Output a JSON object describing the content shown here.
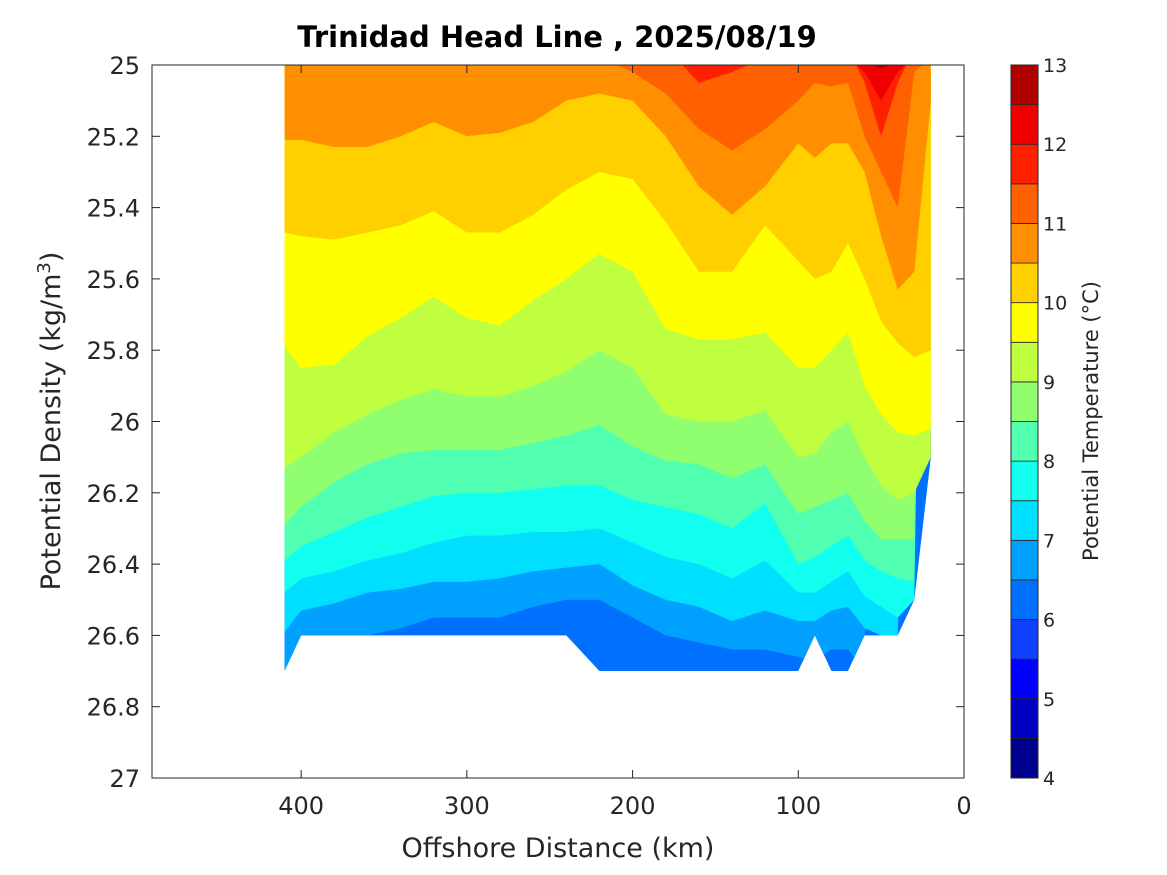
{
  "chart_data": {
    "type": "contourf",
    "title": "Trinidad Head Line , 2025/08/19",
    "xlabel": "Offshore Distance (km)",
    "ylabel": "Potential Density (kg/m",
    "ylabel_superscript": "3",
    "ylabel_suffix": ")",
    "colorbar_label": "Potential Temperature (°C)",
    "xlim": [
      490,
      0
    ],
    "ylim": [
      25,
      27
    ],
    "x_reversed": true,
    "y_reversed": true,
    "xticks": [
      400,
      300,
      200,
      100,
      0
    ],
    "xtick_labels": [
      "400",
      "300",
      "200",
      "100",
      "0"
    ],
    "yticks": [
      25,
      25.2,
      25.4,
      25.6,
      25.8,
      26,
      26.2,
      26.4,
      26.6,
      26.8,
      27
    ],
    "ytick_labels": [
      "25",
      "25.2",
      "25.4",
      "25.6",
      "25.8",
      "26",
      "26.2",
      "26.4",
      "26.6",
      "26.8",
      "27"
    ],
    "colorbar": {
      "levels": [
        4,
        4.5,
        5,
        5.5,
        6,
        6.5,
        7,
        7.5,
        8,
        8.5,
        9,
        9.5,
        10,
        10.5,
        11,
        11.5,
        12,
        12.5,
        13
      ],
      "tick_values": [
        4,
        5,
        6,
        7,
        8,
        9,
        10,
        11,
        12,
        13
      ],
      "tick_labels": [
        "4",
        "5",
        "6",
        "7",
        "8",
        "9",
        "10",
        "11",
        "12",
        "13"
      ],
      "colors": [
        "#00008f",
        "#0000c4",
        "#0000ff",
        "#0f3fff",
        "#0070ff",
        "#00a0ff",
        "#00dfff",
        "#10ffef",
        "#50ffaf",
        "#8fff70",
        "#c0ff3f",
        "#ffff00",
        "#ffcf00",
        "#ff8f00",
        "#ff6000",
        "#ff2000",
        "#ef0000",
        "#b00000"
      ]
    },
    "stations_km": [
      410,
      400,
      380,
      360,
      340,
      320,
      300,
      280,
      260,
      240,
      220,
      200,
      180,
      160,
      140,
      120,
      100,
      90,
      80,
      70,
      60,
      50,
      40,
      30,
      20
    ],
    "data_bottom_density": [
      26.7,
      26.6,
      26.6,
      26.6,
      26.6,
      26.6,
      26.6,
      26.6,
      26.6,
      26.6,
      26.7,
      26.7,
      26.7,
      26.7,
      26.7,
      26.7,
      26.7,
      26.6,
      26.7,
      26.7,
      26.6,
      26.6,
      26.6,
      26.5,
      26.1
    ],
    "isotherms": [
      {
        "level": 12.5,
        "density": [
          null,
          null,
          null,
          null,
          null,
          null,
          null,
          null,
          null,
          null,
          null,
          null,
          null,
          null,
          null,
          null,
          null,
          null,
          null,
          null,
          null,
          25.01,
          null,
          null,
          null
        ]
      },
      {
        "level": 12.0,
        "density": [
          null,
          null,
          null,
          null,
          null,
          null,
          null,
          null,
          null,
          null,
          null,
          null,
          null,
          null,
          null,
          null,
          null,
          null,
          null,
          null,
          25.02,
          25.1,
          25.02,
          null,
          null
        ]
      },
      {
        "level": 11.5,
        "density": [
          null,
          null,
          null,
          null,
          null,
          null,
          null,
          null,
          null,
          null,
          null,
          null,
          null,
          25.05,
          25.02,
          null,
          null,
          null,
          null,
          null,
          25.05,
          25.2,
          25.05,
          null,
          null
        ]
      },
      {
        "level": 11.0,
        "density": [
          null,
          null,
          null,
          null,
          null,
          null,
          null,
          null,
          null,
          null,
          null,
          25.02,
          25.08,
          25.18,
          25.24,
          25.18,
          25.1,
          25.05,
          25.06,
          25.05,
          25.2,
          25.3,
          25.4,
          25.02,
          null
        ]
      },
      {
        "level": 10.5,
        "density": [
          25.21,
          25.21,
          25.23,
          25.23,
          25.2,
          25.16,
          25.2,
          25.19,
          25.16,
          25.1,
          25.08,
          25.1,
          25.2,
          25.34,
          25.42,
          25.34,
          25.22,
          25.26,
          25.22,
          25.22,
          25.3,
          25.48,
          25.63,
          25.58,
          25.1
        ]
      },
      {
        "level": 10.0,
        "density": [
          25.47,
          25.48,
          25.49,
          25.47,
          25.45,
          25.41,
          25.47,
          25.47,
          25.42,
          25.35,
          25.3,
          25.32,
          25.44,
          25.58,
          25.58,
          25.45,
          25.55,
          25.6,
          25.58,
          25.5,
          25.6,
          25.72,
          25.78,
          25.82,
          25.8
        ]
      },
      {
        "level": 9.5,
        "density": [
          25.79,
          25.85,
          25.84,
          25.76,
          25.71,
          25.65,
          25.71,
          25.73,
          25.66,
          25.6,
          25.53,
          25.58,
          25.74,
          25.77,
          25.77,
          25.75,
          25.85,
          25.85,
          25.8,
          25.75,
          25.9,
          25.98,
          26.03,
          26.04,
          26.02
        ]
      },
      {
        "level": 9.0,
        "density": [
          26.13,
          26.1,
          26.03,
          25.98,
          25.94,
          25.91,
          25.93,
          25.93,
          25.9,
          25.86,
          25.8,
          25.85,
          25.98,
          26.0,
          26.0,
          25.97,
          26.1,
          26.09,
          26.03,
          26.0,
          26.1,
          26.18,
          26.22,
          26.2,
          26.1
        ]
      },
      {
        "level": 8.5,
        "density": [
          26.29,
          26.24,
          26.17,
          26.12,
          26.09,
          26.08,
          26.08,
          26.08,
          26.06,
          26.04,
          26.01,
          26.07,
          26.11,
          26.12,
          26.16,
          26.12,
          26.26,
          26.24,
          26.22,
          26.2,
          26.28,
          26.33,
          26.33,
          26.33,
          null
        ]
      },
      {
        "level": 8.0,
        "density": [
          26.39,
          26.35,
          26.31,
          26.27,
          26.24,
          26.21,
          26.2,
          26.2,
          26.19,
          26.18,
          26.18,
          26.22,
          26.24,
          26.26,
          26.3,
          26.23,
          26.4,
          26.38,
          26.35,
          26.32,
          26.39,
          26.42,
          26.44,
          26.45,
          null
        ]
      },
      {
        "level": 7.5,
        "density": [
          26.48,
          26.44,
          26.42,
          26.39,
          26.37,
          26.34,
          26.32,
          26.32,
          26.31,
          26.31,
          26.3,
          26.34,
          26.38,
          26.4,
          26.44,
          26.39,
          26.48,
          26.48,
          26.45,
          26.42,
          26.49,
          26.52,
          26.55,
          26.5,
          null
        ]
      },
      {
        "level": 7.0,
        "density": [
          26.59,
          26.53,
          26.51,
          26.48,
          26.47,
          26.45,
          26.45,
          26.44,
          26.42,
          26.41,
          26.4,
          26.46,
          26.5,
          26.52,
          26.56,
          26.53,
          26.56,
          26.56,
          26.53,
          26.52,
          26.58,
          26.6,
          26.62,
          null,
          null
        ]
      },
      {
        "level": 6.5,
        "density": [
          26.7,
          26.61,
          26.6,
          26.6,
          26.58,
          26.55,
          26.55,
          26.55,
          26.52,
          26.5,
          26.5,
          26.55,
          26.6,
          26.62,
          26.64,
          26.64,
          26.66,
          26.67,
          26.64,
          26.64,
          26.7,
          null,
          null,
          null,
          null
        ]
      }
    ]
  }
}
